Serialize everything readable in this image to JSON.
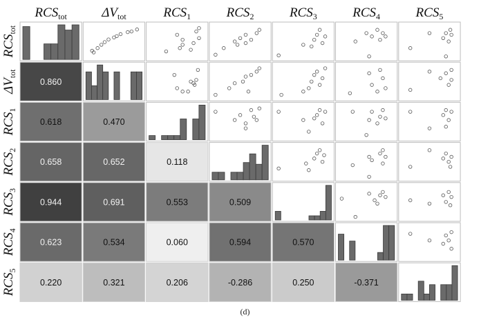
{
  "caption": "(d)",
  "chart_data": {
    "type": "scatter-matrix",
    "variables": [
      {
        "base": "RCS",
        "sub": "tot",
        "prefix": ""
      },
      {
        "base": "V",
        "sub": "tot",
        "prefix": "Δ"
      },
      {
        "base": "RCS",
        "sub": "1",
        "prefix": ""
      },
      {
        "base": "RCS",
        "sub": "2",
        "prefix": ""
      },
      {
        "base": "RCS",
        "sub": "3",
        "prefix": ""
      },
      {
        "base": "RCS",
        "sub": "4",
        "prefix": ""
      },
      {
        "base": "RCS",
        "sub": "5",
        "prefix": ""
      }
    ],
    "correlations": [
      {
        "row": 1,
        "col": 0,
        "value": "0.860",
        "gray": "#474747"
      },
      {
        "row": 2,
        "col": 0,
        "value": "0.618",
        "gray": "#6f6f6f"
      },
      {
        "row": 2,
        "col": 1,
        "value": "0.470",
        "gray": "#9b9b9b"
      },
      {
        "row": 3,
        "col": 0,
        "value": "0.658",
        "gray": "#656565"
      },
      {
        "row": 3,
        "col": 1,
        "value": "0.652",
        "gray": "#676767"
      },
      {
        "row": 3,
        "col": 2,
        "value": "0.118",
        "gray": "#e6e6e6"
      },
      {
        "row": 4,
        "col": 0,
        "value": "0.944",
        "gray": "#404040"
      },
      {
        "row": 4,
        "col": 1,
        "value": "0.691",
        "gray": "#5f5f5f"
      },
      {
        "row": 4,
        "col": 2,
        "value": "0.553",
        "gray": "#7c7c7c"
      },
      {
        "row": 4,
        "col": 3,
        "value": "0.509",
        "gray": "#8a8a8a"
      },
      {
        "row": 5,
        "col": 0,
        "value": "0.623",
        "gray": "#6a6a6a"
      },
      {
        "row": 5,
        "col": 1,
        "value": "0.534",
        "gray": "#7a7a7a"
      },
      {
        "row": 5,
        "col": 2,
        "value": "0.060",
        "gray": "#efefef"
      },
      {
        "row": 5,
        "col": 3,
        "value": "0.594",
        "gray": "#717171"
      },
      {
        "row": 5,
        "col": 4,
        "value": "0.570",
        "gray": "#757575"
      },
      {
        "row": 6,
        "col": 0,
        "value": "0.220",
        "gray": "#d1d1d1"
      },
      {
        "row": 6,
        "col": 1,
        "value": "0.321",
        "gray": "#bdbdbd"
      },
      {
        "row": 6,
        "col": 2,
        "value": "0.206",
        "gray": "#d4d4d4"
      },
      {
        "row": 6,
        "col": 3,
        "value": "-0.286",
        "gray": "#b3b3b3"
      },
      {
        "row": 6,
        "col": 4,
        "value": "0.250",
        "gray": "#cbcbcb"
      },
      {
        "row": 6,
        "col": 5,
        "value": "-0.371",
        "gray": "#9a9a9a"
      }
    ],
    "histograms": [
      [
        0.95,
        0.0,
        0.0,
        0.45,
        0.45,
        1.0,
        0.85,
        1.0
      ],
      [
        0.8,
        0.4,
        1.0,
        0.8,
        0.0,
        0.8,
        0.0,
        0.0,
        0.8,
        0.8
      ],
      [
        0.12,
        0.0,
        0.12,
        0.12,
        0.12,
        0.6,
        0.0,
        0.6,
        1.0
      ],
      [
        0.22,
        0.22,
        0.0,
        0.22,
        0.22,
        0.5,
        0.75,
        0.45,
        1.0
      ],
      [
        0.25,
        0.0,
        0.0,
        0.0,
        0.0,
        0.0,
        0.12,
        0.12,
        0.25,
        1.0
      ],
      [
        0.75,
        0.0,
        0.55,
        0.0,
        0.0,
        0.0,
        0.0,
        0.22,
        1.0,
        1.0
      ],
      [
        0.18,
        0.18,
        0.0,
        0.55,
        0.18,
        0.45,
        0.0,
        0.45,
        0.45,
        1.0
      ]
    ],
    "scatter": [
      {
        "row": 0,
        "col": 1,
        "points": [
          [
            0.1,
            0.22
          ],
          [
            0.13,
            0.17
          ],
          [
            0.2,
            0.3
          ],
          [
            0.27,
            0.4
          ],
          [
            0.33,
            0.48
          ],
          [
            0.4,
            0.56
          ],
          [
            0.5,
            0.62
          ],
          [
            0.55,
            0.66
          ],
          [
            0.62,
            0.72
          ],
          [
            0.75,
            0.78
          ],
          [
            0.82,
            0.8
          ],
          [
            0.92,
            0.86
          ]
        ]
      },
      {
        "row": 0,
        "col": 2,
        "points": [
          [
            0.3,
            0.2
          ],
          [
            0.5,
            0.7
          ],
          [
            0.6,
            0.4
          ],
          [
            0.75,
            0.25
          ],
          [
            0.8,
            0.45
          ],
          [
            0.85,
            0.8
          ],
          [
            0.9,
            0.6
          ],
          [
            0.9,
            0.9
          ],
          [
            0.55,
            0.3
          ],
          [
            0.6,
            0.55
          ]
        ]
      },
      {
        "row": 0,
        "col": 3,
        "points": [
          [
            0.05,
            0.1
          ],
          [
            0.2,
            0.3
          ],
          [
            0.4,
            0.5
          ],
          [
            0.5,
            0.6
          ],
          [
            0.6,
            0.7
          ],
          [
            0.7,
            0.55
          ],
          [
            0.8,
            0.75
          ],
          [
            0.85,
            0.85
          ],
          [
            0.6,
            0.45
          ],
          [
            0.45,
            0.4
          ]
        ]
      },
      {
        "row": 0,
        "col": 4,
        "points": [
          [
            0.05,
            0.08
          ],
          [
            0.5,
            0.4
          ],
          [
            0.7,
            0.55
          ],
          [
            0.75,
            0.7
          ],
          [
            0.8,
            0.85
          ],
          [
            0.85,
            0.45
          ],
          [
            0.9,
            0.65
          ],
          [
            0.65,
            0.35
          ]
        ]
      },
      {
        "row": 0,
        "col": 5,
        "points": [
          [
            0.3,
            0.5
          ],
          [
            0.5,
            0.75
          ],
          [
            0.6,
            0.65
          ],
          [
            0.7,
            0.85
          ],
          [
            0.75,
            0.55
          ],
          [
            0.8,
            0.75
          ],
          [
            0.85,
            0.65
          ],
          [
            0.55,
            0.05
          ]
        ]
      },
      {
        "row": 0,
        "col": 6,
        "points": [
          [
            0.15,
            0.3
          ],
          [
            0.5,
            0.75
          ],
          [
            0.75,
            0.6
          ],
          [
            0.8,
            0.75
          ],
          [
            0.85,
            0.5
          ],
          [
            0.9,
            0.7
          ],
          [
            0.88,
            0.85
          ],
          [
            0.8,
            0.05
          ]
        ]
      },
      {
        "row": 1,
        "col": 2,
        "points": [
          [
            0.45,
            0.7
          ],
          [
            0.5,
            0.3
          ],
          [
            0.7,
            0.2
          ],
          [
            0.75,
            0.5
          ],
          [
            0.8,
            0.45
          ],
          [
            0.82,
            0.4
          ],
          [
            0.85,
            0.55
          ],
          [
            0.88,
            0.85
          ],
          [
            0.6,
            0.2
          ]
        ]
      },
      {
        "row": 1,
        "col": 3,
        "points": [
          [
            0.05,
            0.1
          ],
          [
            0.3,
            0.3
          ],
          [
            0.4,
            0.45
          ],
          [
            0.55,
            0.5
          ],
          [
            0.6,
            0.65
          ],
          [
            0.7,
            0.7
          ],
          [
            0.8,
            0.8
          ],
          [
            0.85,
            0.9
          ],
          [
            0.65,
            0.2
          ]
        ]
      },
      {
        "row": 1,
        "col": 4,
        "points": [
          [
            0.1,
            0.1
          ],
          [
            0.5,
            0.2
          ],
          [
            0.65,
            0.5
          ],
          [
            0.7,
            0.7
          ],
          [
            0.75,
            0.8
          ],
          [
            0.8,
            0.4
          ],
          [
            0.85,
            0.6
          ],
          [
            0.9,
            0.9
          ],
          [
            0.6,
            0.3
          ]
        ]
      },
      {
        "row": 1,
        "col": 5,
        "points": [
          [
            0.2,
            0.15
          ],
          [
            0.55,
            0.75
          ],
          [
            0.6,
            0.4
          ],
          [
            0.7,
            0.2
          ],
          [
            0.75,
            0.85
          ],
          [
            0.8,
            0.6
          ],
          [
            0.85,
            0.3
          ]
        ]
      },
      {
        "row": 1,
        "col": 6,
        "points": [
          [
            0.15,
            0.25
          ],
          [
            0.5,
            0.8
          ],
          [
            0.7,
            0.6
          ],
          [
            0.8,
            0.75
          ],
          [
            0.85,
            0.4
          ],
          [
            0.9,
            0.55
          ],
          [
            0.9,
            0.85
          ]
        ]
      },
      {
        "row": 2,
        "col": 3,
        "points": [
          [
            0.05,
            0.8
          ],
          [
            0.4,
            0.55
          ],
          [
            0.5,
            0.7
          ],
          [
            0.6,
            0.45
          ],
          [
            0.7,
            0.85
          ],
          [
            0.75,
            0.65
          ],
          [
            0.8,
            0.55
          ],
          [
            0.85,
            0.9
          ],
          [
            0.6,
            0.3
          ]
        ]
      },
      {
        "row": 2,
        "col": 4,
        "points": [
          [
            0.05,
            0.8
          ],
          [
            0.5,
            0.55
          ],
          [
            0.7,
            0.6
          ],
          [
            0.75,
            0.7
          ],
          [
            0.8,
            0.85
          ],
          [
            0.85,
            0.45
          ],
          [
            0.9,
            0.8
          ],
          [
            0.6,
            0.2
          ]
        ]
      },
      {
        "row": 2,
        "col": 5,
        "points": [
          [
            0.25,
            0.8
          ],
          [
            0.55,
            0.55
          ],
          [
            0.6,
            0.8
          ],
          [
            0.7,
            0.45
          ],
          [
            0.75,
            0.65
          ],
          [
            0.8,
            0.85
          ],
          [
            0.85,
            0.6
          ],
          [
            0.5,
            0.1
          ]
        ]
      },
      {
        "row": 2,
        "col": 6,
        "points": [
          [
            0.15,
            0.8
          ],
          [
            0.5,
            0.3
          ],
          [
            0.75,
            0.7
          ],
          [
            0.8,
            0.85
          ],
          [
            0.85,
            0.55
          ],
          [
            0.9,
            0.8
          ],
          [
            0.8,
            0.35
          ]
        ]
      },
      {
        "row": 3,
        "col": 4,
        "points": [
          [
            0.05,
            0.3
          ],
          [
            0.55,
            0.45
          ],
          [
            0.7,
            0.6
          ],
          [
            0.75,
            0.75
          ],
          [
            0.8,
            0.85
          ],
          [
            0.85,
            0.5
          ],
          [
            0.88,
            0.7
          ],
          [
            0.6,
            0.25
          ]
        ]
      },
      {
        "row": 3,
        "col": 5,
        "points": [
          [
            0.25,
            0.4
          ],
          [
            0.55,
            0.65
          ],
          [
            0.6,
            0.55
          ],
          [
            0.75,
            0.75
          ],
          [
            0.8,
            0.85
          ],
          [
            0.85,
            0.65
          ],
          [
            0.8,
            0.45
          ],
          [
            0.55,
            0.05
          ]
        ]
      },
      {
        "row": 3,
        "col": 6,
        "points": [
          [
            0.15,
            0.35
          ],
          [
            0.5,
            0.85
          ],
          [
            0.75,
            0.6
          ],
          [
            0.8,
            0.75
          ],
          [
            0.85,
            0.5
          ],
          [
            0.9,
            0.65
          ],
          [
            0.88,
            0.35
          ]
        ]
      },
      {
        "row": 4,
        "col": 5,
        "points": [
          [
            0.05,
            0.6
          ],
          [
            0.3,
            0.05
          ],
          [
            0.55,
            0.75
          ],
          [
            0.65,
            0.55
          ],
          [
            0.75,
            0.7
          ],
          [
            0.8,
            0.8
          ],
          [
            0.85,
            0.65
          ],
          [
            0.7,
            0.45
          ]
        ]
      },
      {
        "row": 4,
        "col": 6,
        "points": [
          [
            0.15,
            0.55
          ],
          [
            0.5,
            0.45
          ],
          [
            0.75,
            0.7
          ],
          [
            0.8,
            0.5
          ],
          [
            0.85,
            0.8
          ],
          [
            0.9,
            0.65
          ],
          [
            0.88,
            0.4
          ]
        ]
      },
      {
        "row": 5,
        "col": 6,
        "points": [
          [
            0.15,
            0.75
          ],
          [
            0.5,
            0.55
          ],
          [
            0.75,
            0.45
          ],
          [
            0.8,
            0.7
          ],
          [
            0.85,
            0.55
          ],
          [
            0.9,
            0.8
          ],
          [
            0.9,
            0.3
          ]
        ]
      }
    ]
  }
}
